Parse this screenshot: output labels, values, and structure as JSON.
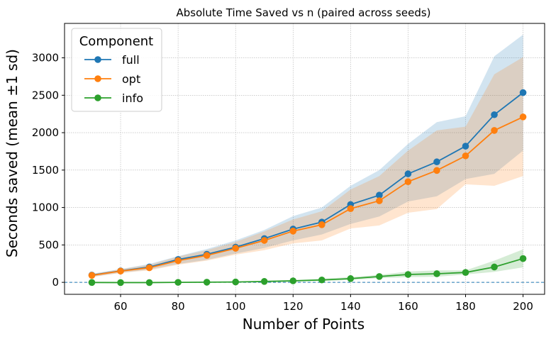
{
  "chart_data": {
    "type": "line",
    "title": "Absolute Time Saved vs n (paired across seeds)",
    "xlabel": "Number of Points",
    "ylabel": "Seconds saved (mean ±1 sd)",
    "xlim": [
      40.5,
      207.5
    ],
    "ylim": [
      -160,
      3460
    ],
    "xticks": [
      60,
      80,
      100,
      120,
      140,
      160,
      180,
      200
    ],
    "yticks": [
      0,
      500,
      1000,
      1500,
      2000,
      2500,
      3000
    ],
    "grid": true,
    "zero_line": true,
    "legend": {
      "title": "Component",
      "position": "top-left"
    },
    "x": [
      50,
      60,
      70,
      80,
      90,
      100,
      110,
      120,
      130,
      140,
      150,
      160,
      170,
      180,
      190,
      200
    ],
    "series": [
      {
        "name": "full",
        "color": "#1f77b4",
        "values": [
          97,
          153,
          205,
          305,
          375,
          470,
          585,
          712,
          805,
          1040,
          1165,
          1450,
          1610,
          1820,
          2240,
          2535
        ],
        "lower": [
          75,
          128,
          170,
          245,
          300,
          385,
          460,
          560,
          640,
          780,
          880,
          1080,
          1150,
          1380,
          1450,
          1760
        ],
        "upper": [
          115,
          178,
          245,
          350,
          445,
          560,
          700,
          885,
          1000,
          1290,
          1500,
          1850,
          2140,
          2220,
          3020,
          3310
        ]
      },
      {
        "name": "opt",
        "color": "#ff7f0e",
        "values": [
          93,
          150,
          195,
          290,
          360,
          455,
          560,
          685,
          770,
          985,
          1090,
          1345,
          1495,
          1690,
          2030,
          2210
        ],
        "lower": [
          70,
          125,
          160,
          235,
          290,
          370,
          430,
          520,
          560,
          720,
          760,
          930,
          980,
          1310,
          1290,
          1420
        ],
        "upper": [
          110,
          175,
          235,
          345,
          430,
          540,
          680,
          840,
          950,
          1240,
          1420,
          1760,
          2030,
          2080,
          2780,
          3010
        ]
      },
      {
        "name": "info",
        "color": "#2ca02c",
        "values": [
          -2,
          -3,
          -3,
          0,
          2,
          5,
          12,
          20,
          32,
          50,
          78,
          105,
          115,
          132,
          205,
          318
        ],
        "lower": [
          -4,
          -6,
          -6,
          -4,
          -3,
          -1,
          5,
          10,
          18,
          32,
          55,
          70,
          75,
          105,
          140,
          200
        ],
        "upper": [
          0,
          0,
          1,
          4,
          8,
          12,
          20,
          32,
          48,
          70,
          100,
          145,
          160,
          160,
          290,
          440
        ]
      }
    ]
  }
}
